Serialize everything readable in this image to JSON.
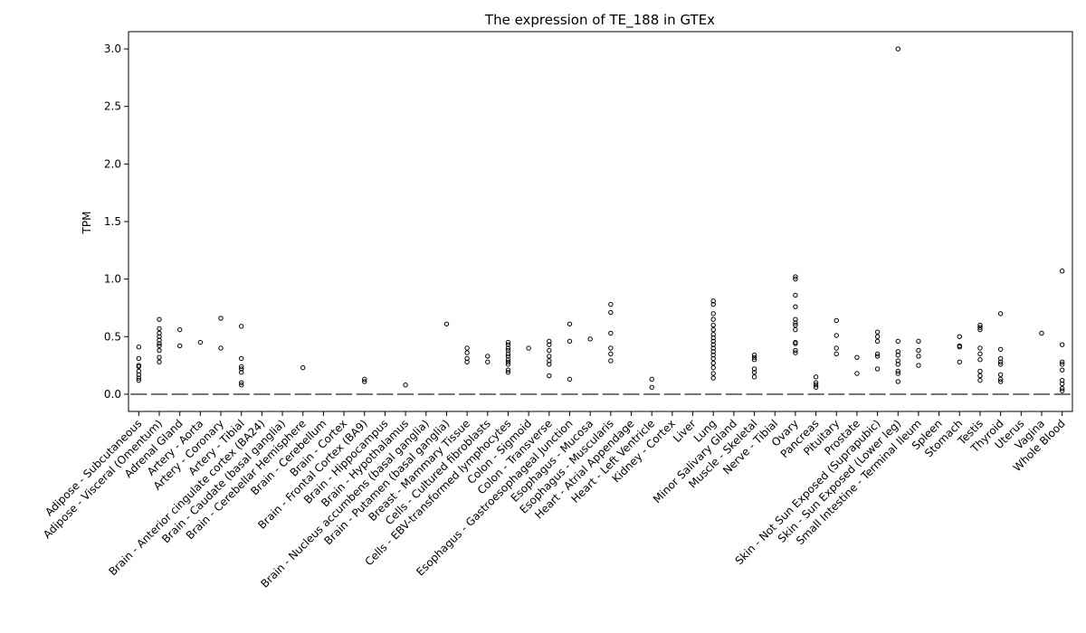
{
  "chart_data": {
    "type": "boxplot",
    "title": "The expression of TE_188 in GTEx",
    "xlabel": "",
    "ylabel": "TPM",
    "ylim": [
      -0.15,
      3.15
    ],
    "yticks": [
      "0.0",
      "0.5",
      "1.0",
      "1.5",
      "2.0",
      "2.5",
      "3.0"
    ],
    "grid": false,
    "median_line_color": "#555555",
    "categories": [
      "Adipose - Subcutaneous",
      "Adipose - Visceral (Omentum)",
      "Adrenal Gland",
      "Artery - Aorta",
      "Artery - Coronary",
      "Artery - Tibial",
      "Brain - Anterior cingulate cortex (BA24)",
      "Brain - Caudate (basal ganglia)",
      "Brain - Cerebellar Hemisphere",
      "Brain - Cerebellum",
      "Brain - Cortex",
      "Brain - Frontal Cortex (BA9)",
      "Brain - Hippocampus",
      "Brain - Hypothalamus",
      "Brain - Nucleus accumbens (basal ganglia)",
      "Brain - Putamen (basal ganglia)",
      "Breast - Mammary Tissue",
      "Cells - Cultured fibroblasts",
      "Cells - EBV-transformed lymphocytes",
      "Colon - Sigmoid",
      "Colon - Transverse",
      "Esophagus - Gastroesophageal Junction",
      "Esophagus - Mucosa",
      "Esophagus - Muscularis",
      "Heart - Atrial Appendage",
      "Heart - Left Ventricle",
      "Kidney - Cortex",
      "Liver",
      "Lung",
      "Minor Salivary Gland",
      "Muscle - Skeletal",
      "Nerve - Tibial",
      "Ovary",
      "Pancreas",
      "Pituitary",
      "Prostate",
      "Skin - Not Sun Exposed (Suprapubic)",
      "Skin - Sun Exposed (Lower leg)",
      "Small Intestine - Terminal Ileum",
      "Spleen",
      "Stomach",
      "Testis",
      "Thyroid",
      "Uterus",
      "Vagina",
      "Whole Blood"
    ],
    "medians": [
      0,
      0,
      0,
      0,
      0,
      0,
      0,
      0,
      0,
      0,
      0,
      0,
      0,
      0,
      0,
      0,
      0,
      0,
      0,
      0,
      0,
      0,
      0,
      0,
      0,
      0,
      0,
      0,
      0,
      0,
      0,
      0,
      0,
      0,
      0,
      0,
      0,
      0,
      0,
      0,
      0,
      0,
      0,
      0,
      0,
      0
    ],
    "outliers": [
      [
        0.41,
        0.31,
        0.25,
        0.24,
        0.2,
        0.17,
        0.14,
        0.12
      ],
      [
        0.65,
        0.57,
        0.53,
        0.5,
        0.47,
        0.44,
        0.42,
        0.38,
        0.32,
        0.28
      ],
      [
        0.56,
        0.42
      ],
      [
        0.45
      ],
      [
        0.66,
        0.4
      ],
      [
        0.59,
        0.31,
        0.24,
        0.22,
        0.19,
        0.1,
        0.08
      ],
      [],
      [],
      [
        0.23
      ],
      [],
      [],
      [
        0.13,
        0.11
      ],
      [],
      [
        0.08
      ],
      [],
      [
        0.61
      ],
      [
        0.4,
        0.36,
        0.31,
        0.28
      ],
      [
        0.33,
        0.28
      ],
      [
        0.45,
        0.43,
        0.4,
        0.38,
        0.35,
        0.33,
        0.3,
        0.28,
        0.26,
        0.21,
        0.19
      ],
      [
        0.4
      ],
      [
        0.46,
        0.43,
        0.38,
        0.33,
        0.29,
        0.26,
        0.16
      ],
      [
        0.61,
        0.46,
        0.13
      ],
      [
        0.48
      ],
      [
        0.78,
        0.71,
        0.53,
        0.4,
        0.35,
        0.29
      ],
      [],
      [
        0.13,
        0.06
      ],
      [],
      [],
      [
        0.81,
        0.78,
        0.7,
        0.65,
        0.6,
        0.56,
        0.52,
        0.49,
        0.46,
        0.43,
        0.4,
        0.37,
        0.34,
        0.31,
        0.27,
        0.23,
        0.18,
        0.14
      ],
      [],
      [
        0.34,
        0.32,
        0.3,
        0.22,
        0.19,
        0.15
      ],
      [],
      [
        1.02,
        1.0,
        0.86,
        0.76,
        0.65,
        0.62,
        0.6,
        0.56,
        0.45,
        0.44,
        0.38,
        0.36
      ],
      [
        0.15,
        0.1,
        0.08,
        0.06
      ],
      [
        0.64,
        0.51,
        0.4,
        0.35
      ],
      [
        0.32,
        0.18
      ],
      [
        0.54,
        0.5,
        0.46,
        0.35,
        0.33,
        0.22
      ],
      [
        3.0,
        0.46,
        0.37,
        0.34,
        0.29,
        0.26,
        0.2,
        0.18,
        0.11
      ],
      [
        0.46,
        0.38,
        0.33,
        0.25
      ],
      [],
      [
        0.5,
        0.42,
        0.41,
        0.28
      ],
      [
        0.6,
        0.58,
        0.56,
        0.4,
        0.35,
        0.3,
        0.2,
        0.16,
        0.12
      ],
      [
        0.7,
        0.39,
        0.31,
        0.28,
        0.26,
        0.17,
        0.13,
        0.11
      ],
      [],
      [
        0.53
      ],
      [
        1.07,
        0.43,
        0.28,
        0.26,
        0.21,
        0.12,
        0.09,
        0.05,
        0.03
      ]
    ]
  }
}
